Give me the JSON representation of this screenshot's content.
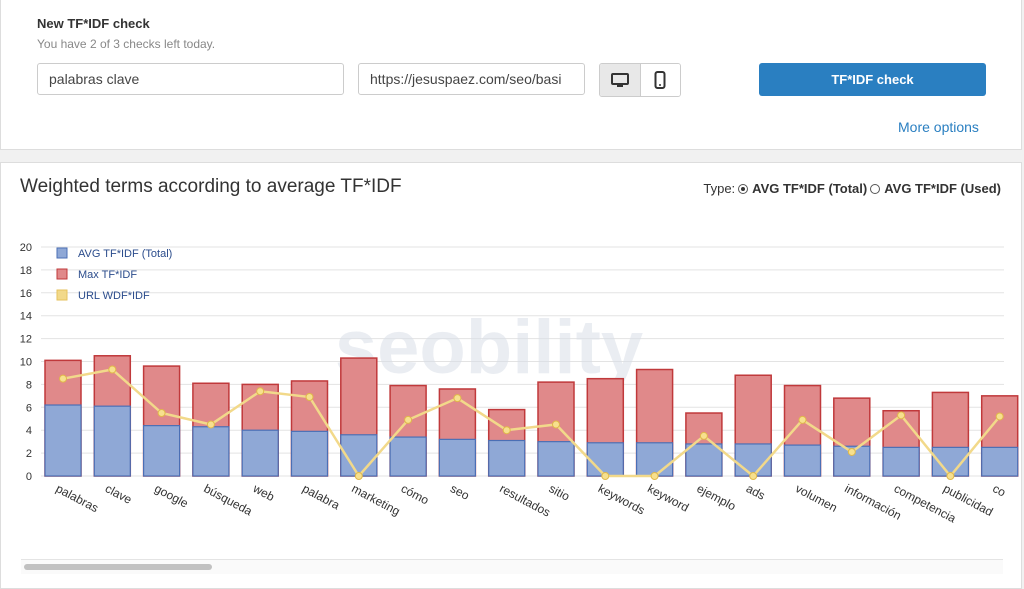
{
  "check": {
    "title": "New TF*IDF check",
    "subtitle": "You have 2 of 3 checks left today.",
    "keyword_value": "palabras clave",
    "url_value": "https://jesuspaez.com/seo/basi",
    "submit_label": "TF*IDF check",
    "more_label": "More options"
  },
  "chart_panel": {
    "heading": "Weighted terms according to average TF*IDF",
    "type_label": "Type:",
    "type_options": [
      "AVG TF*IDF (Total)",
      "AVG TF*IDF (Used)"
    ],
    "selected_type": "AVG TF*IDF (Total)",
    "watermark": "seobility"
  },
  "colors": {
    "avg": "#8fa8d6",
    "avg_border": "#4b6fb5",
    "max": "#e0898a",
    "max_border": "#c0393b",
    "url": "#f2d98a",
    "primary": "#2a7fc1"
  },
  "chart_data": {
    "type": "bar",
    "stacked": true,
    "categories": [
      "palabras",
      "clave",
      "google",
      "búsqueda",
      "web",
      "palabra",
      "marketing",
      "cómo",
      "seo",
      "resultados",
      "sitio",
      "keywords",
      "keyword",
      "ejemplo",
      "ads",
      "volumen",
      "información",
      "competencia",
      "publicidad",
      "co"
    ],
    "series": [
      {
        "name": "AVG TF*IDF (Total)",
        "type": "bar",
        "values": [
          6.2,
          6.1,
          4.4,
          4.3,
          4.0,
          3.9,
          3.6,
          3.4,
          3.2,
          3.1,
          3.0,
          2.9,
          2.9,
          2.8,
          2.8,
          2.7,
          2.6,
          2.5,
          2.5,
          2.5
        ]
      },
      {
        "name": "Max TF*IDF",
        "type": "bar",
        "values": [
          10.1,
          10.5,
          9.6,
          8.1,
          8.0,
          8.3,
          10.3,
          7.9,
          7.6,
          5.8,
          8.2,
          8.5,
          9.3,
          5.5,
          8.8,
          7.9,
          6.8,
          5.7,
          7.3,
          7.0
        ]
      },
      {
        "name": "URL WDF*IDF",
        "type": "line",
        "values": [
          8.5,
          9.3,
          5.5,
          4.5,
          7.4,
          6.9,
          0,
          4.9,
          6.8,
          4.0,
          4.5,
          0,
          0,
          3.5,
          0,
          4.9,
          2.1,
          5.3,
          0,
          5.2
        ]
      }
    ],
    "ylim": [
      0,
      20
    ],
    "yticks": [
      0,
      2,
      4,
      6,
      8,
      10,
      12,
      14,
      16,
      18,
      20
    ],
    "grid": true,
    "legend_position": "top-left"
  }
}
